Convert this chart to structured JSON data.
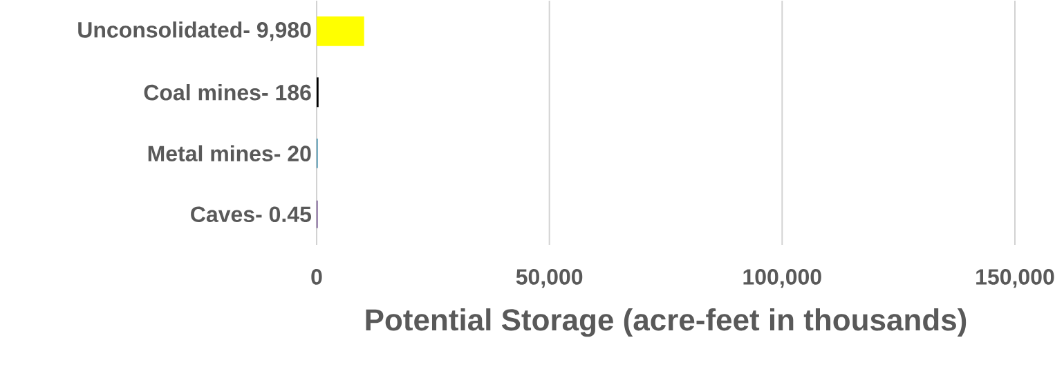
{
  "chart_data": {
    "type": "bar",
    "orientation": "horizontal",
    "xlabel": "Potential Storage (acre-feet in thousands)",
    "categories": [
      "Unconsolidated- 9,980",
      "Coal mines- 186",
      "Metal mines- 20",
      "Caves- 0.45"
    ],
    "values": [
      9980,
      186,
      20,
      0.45
    ],
    "colors": [
      "#ffff00",
      "#000000",
      "#1b7a9c",
      "#4b1f6f"
    ],
    "xlim": [
      0,
      150000
    ],
    "xticks": [
      {
        "value": 0,
        "label": "0"
      },
      {
        "value": 50000,
        "label": "50,000"
      },
      {
        "value": 100000,
        "label": "100,000"
      },
      {
        "value": 150000,
        "label": "150,000"
      }
    ],
    "grid": "x"
  }
}
